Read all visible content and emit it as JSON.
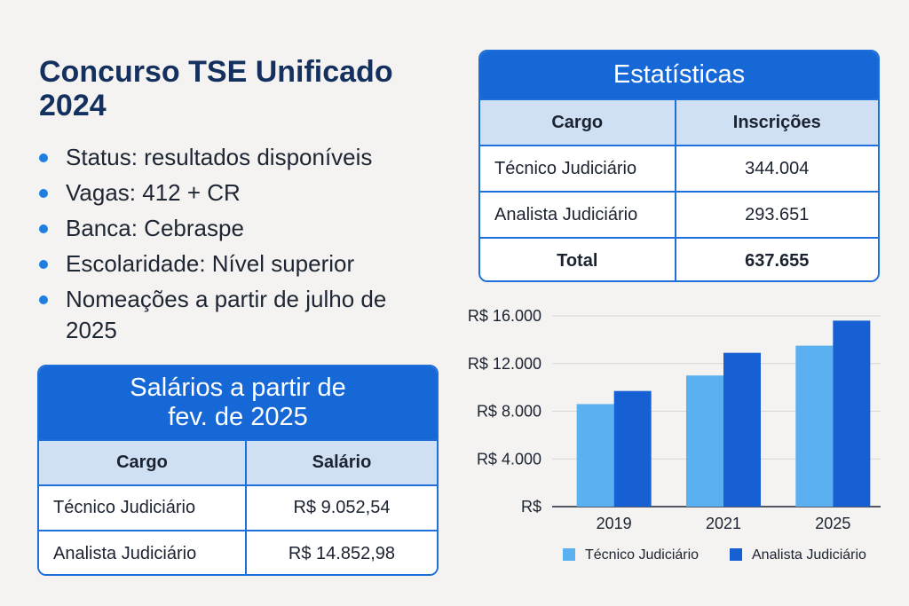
{
  "title": "Concurso TSE Unificado 2024",
  "bullets": [
    "Status: resultados disponíveis",
    "Vagas: 412 + CR",
    "Banca: Cebraspe",
    "Escolaridade: Nível superior",
    "Nomeações a partir de julho de 2025"
  ],
  "salarios": {
    "heading_line1": "Salários a partir de",
    "heading_line2": "fev. de 2025",
    "col1": "Cargo",
    "col2": "Salário",
    "rows": [
      [
        "Técnico Judiciário",
        "R$ 9.052,54"
      ],
      [
        "Analista Judiciário",
        "R$ 14.852,98"
      ]
    ]
  },
  "estatisticas": {
    "heading": "Estatísticas",
    "col1": "Cargo",
    "col2": "Inscrições",
    "rows": [
      [
        "Técnico Judiciário",
        "344.004"
      ],
      [
        "Analista Judiciário",
        "293.651"
      ]
    ],
    "total_label": "Total",
    "total_value": "637.655"
  },
  "colors": {
    "accent": "#1668d6",
    "series_light": "#5ab0f0",
    "series_dark": "#1660d4"
  },
  "chart_data": {
    "type": "bar",
    "categories": [
      "2019",
      "2021",
      "2025"
    ],
    "series": [
      {
        "name": "Técnico Judiciário",
        "values": [
          8600,
          11000,
          13500
        ]
      },
      {
        "name": "Analista Judiciário",
        "values": [
          9700,
          12900,
          15600
        ]
      }
    ],
    "y_ticks": [
      0,
      4000,
      8000,
      12000,
      16000
    ],
    "y_tick_labels": [
      "R$",
      "R$ 4.000",
      "R$ 8.000",
      "R$ 12.000",
      "R$ 16.000"
    ],
    "ylim": [
      0,
      16000
    ],
    "grid": true,
    "legend": "bottom"
  }
}
